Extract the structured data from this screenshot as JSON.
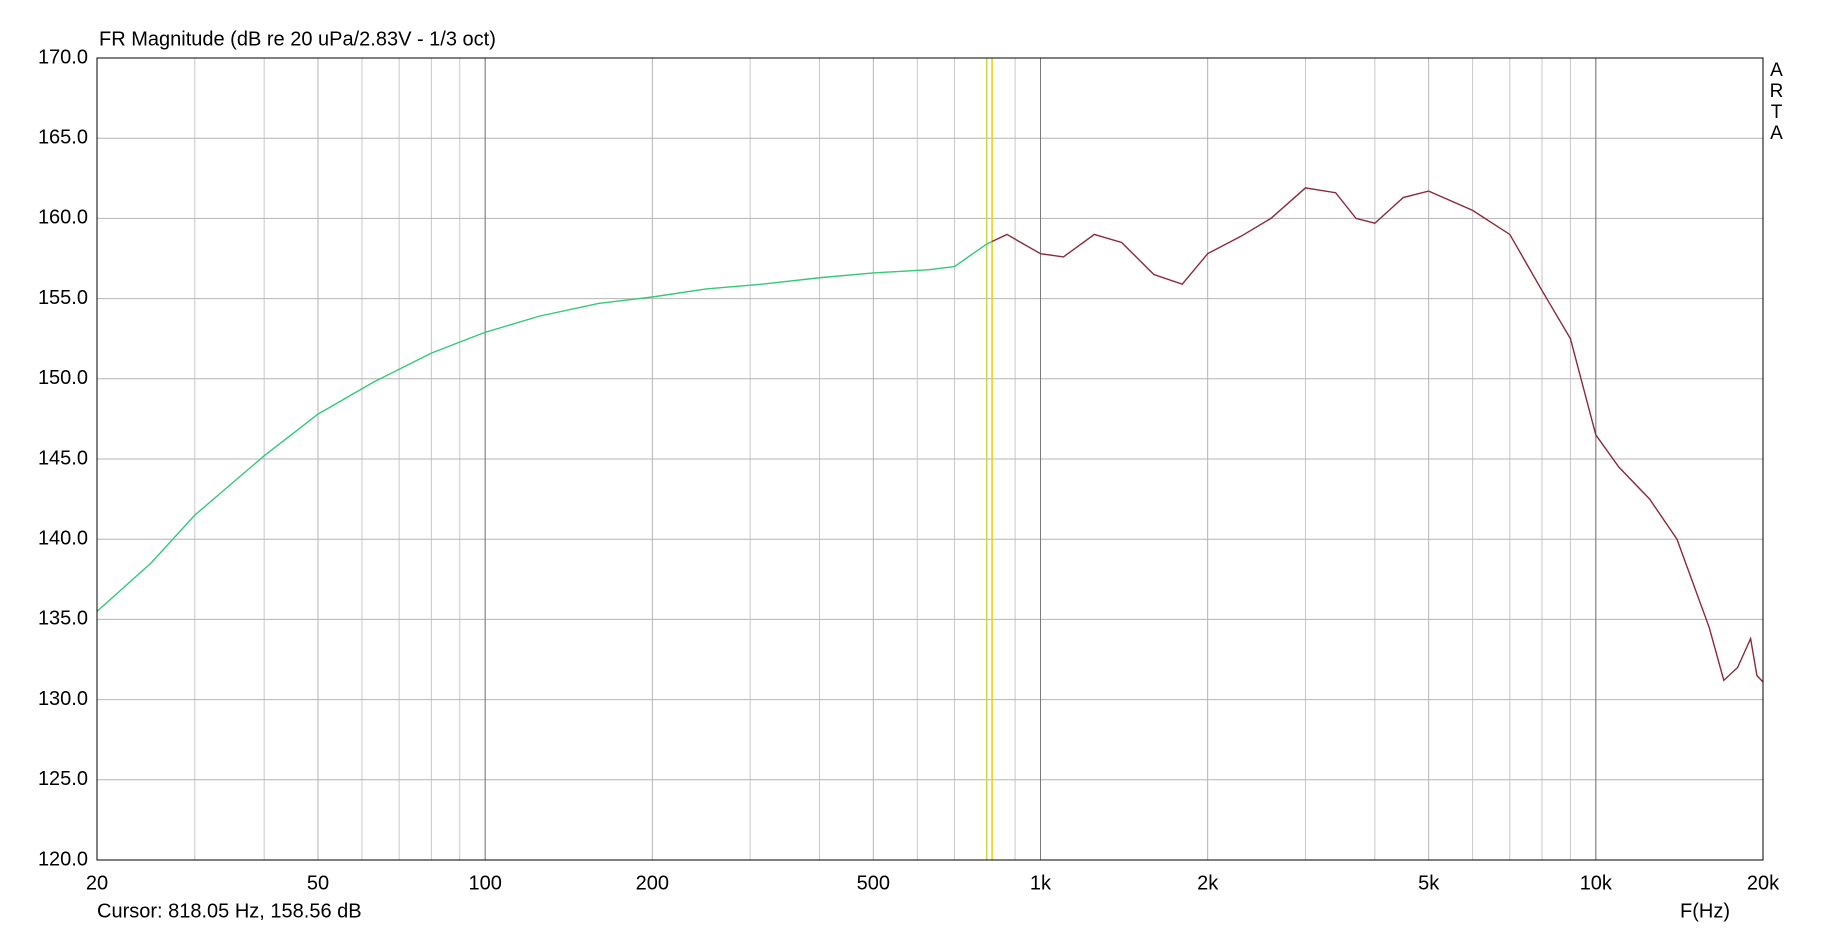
{
  "chart_data": {
    "type": "line",
    "title": "FR Magnitude (dB re 20 uPa/2.83V - 1/3 oct)",
    "xlabel": "F(Hz)",
    "brand": "ARTA",
    "cursor_text": "Cursor: 818.05 Hz, 158.56 dB",
    "cursor_lines": [
      {
        "x": 800,
        "color": "#c8d84a"
      },
      {
        "x": 818.05,
        "color": "#e8d000"
      }
    ],
    "xscale": "log",
    "xlim": [
      20,
      20000
    ],
    "ylim": [
      120,
      170
    ],
    "xticks": [
      20,
      50,
      100,
      200,
      500,
      {
        "value": 1000,
        "label": "1k"
      },
      {
        "value": 2000,
        "label": "2k"
      },
      {
        "value": 5000,
        "label": "5k"
      },
      {
        "value": 10000,
        "label": "10k"
      },
      {
        "value": 20000,
        "label": "20k"
      }
    ],
    "xgrid_minor": [
      30,
      40,
      60,
      70,
      80,
      90,
      300,
      400,
      600,
      700,
      800,
      900,
      3000,
      4000,
      6000,
      7000,
      8000,
      9000
    ],
    "xgrid_dark": [
      100,
      1000,
      10000
    ],
    "yticks": [
      {
        "value": 120,
        "label": "120.0"
      },
      {
        "value": 125,
        "label": "125.0"
      },
      {
        "value": 130,
        "label": "130.0"
      },
      {
        "value": 135,
        "label": "135.0"
      },
      {
        "value": 140,
        "label": "140.0"
      },
      {
        "value": 145,
        "label": "145.0"
      },
      {
        "value": 150,
        "label": "150.0"
      },
      {
        "value": 155,
        "label": "155.0"
      },
      {
        "value": 160,
        "label": "160.0"
      },
      {
        "value": 165,
        "label": "165.0"
      },
      {
        "value": 170,
        "label": "170.0"
      }
    ],
    "grid": true,
    "x": [
      20,
      25,
      30,
      40,
      50,
      63,
      80,
      100,
      125,
      160,
      200,
      250,
      315,
      400,
      500,
      630,
      700,
      800,
      818.05,
      870,
      1000,
      1100,
      1250,
      1400,
      1600,
      1800,
      2000,
      2300,
      2600,
      3000,
      3400,
      3700,
      4000,
      4500,
      5000,
      6000,
      7000,
      8000,
      9000,
      10000,
      11000,
      12500,
      14000,
      16000,
      17000,
      18000,
      19000,
      19500,
      20000
    ],
    "series": [
      {
        "color": "#34c878",
        "values": [
          135.5,
          138.5,
          141.5,
          145.2,
          147.8,
          149.8,
          151.6,
          152.9,
          153.9,
          154.7,
          155.1,
          155.6,
          155.9,
          156.3,
          156.6,
          156.8,
          157.0,
          158.4,
          158.56,
          null,
          null,
          null,
          null,
          null,
          null,
          null,
          null,
          null,
          null,
          null,
          null,
          null,
          null,
          null,
          null,
          null,
          null,
          null,
          null,
          null,
          null,
          null,
          null,
          null,
          null,
          null,
          null,
          null,
          null
        ]
      },
      {
        "color": "#8a2a3a",
        "values": [
          null,
          null,
          null,
          null,
          null,
          null,
          null,
          null,
          null,
          null,
          null,
          null,
          null,
          null,
          null,
          null,
          null,
          null,
          158.56,
          159.0,
          157.8,
          157.6,
          159.0,
          158.5,
          156.5,
          155.9,
          157.8,
          158.9,
          160.0,
          161.9,
          161.6,
          160.0,
          159.7,
          161.3,
          161.7,
          160.5,
          159.0,
          155.5,
          152.5,
          146.5,
          144.5,
          142.5,
          140.0,
          134.5,
          131.2,
          132.0,
          133.8,
          131.5,
          131.1
        ]
      }
    ]
  }
}
